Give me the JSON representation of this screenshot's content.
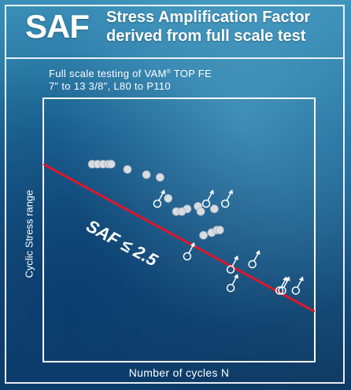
{
  "header": {
    "abbr": "SAF",
    "title_line1": "Stress Amplification Factor",
    "title_line2": "derived from full scale test"
  },
  "subtitle": {
    "line1_pre": "Full scale testing of VAM",
    "line1_reg": "®",
    "line1_post": " TOP FE",
    "line2": "7\"  to 13 3/8\",  L80 to P110"
  },
  "chart_data": {
    "type": "scatter",
    "xlabel": "Number of cycles N",
    "ylabel": "Cyclic Stress range",
    "annotation": "SAF ≤ 2.5",
    "grid": false,
    "legend": "none",
    "colors": {
      "line": "#e0162b",
      "points": "#d8dde4",
      "frame": "#ffffff"
    },
    "xlim": [
      0,
      100
    ],
    "ylim": [
      0,
      100
    ],
    "trend_line": {
      "x": [
        0,
        100
      ],
      "y": [
        75,
        19
      ]
    },
    "failures": [
      {
        "x": 18,
        "y": 75
      },
      {
        "x": 20,
        "y": 75
      },
      {
        "x": 22,
        "y": 75
      },
      {
        "x": 24,
        "y": 75
      },
      {
        "x": 25,
        "y": 75
      },
      {
        "x": 31,
        "y": 73
      },
      {
        "x": 38,
        "y": 71
      },
      {
        "x": 43,
        "y": 70
      },
      {
        "x": 46,
        "y": 62
      },
      {
        "x": 53,
        "y": 58
      },
      {
        "x": 49,
        "y": 57
      },
      {
        "x": 51,
        "y": 57
      },
      {
        "x": 57,
        "y": 59
      },
      {
        "x": 58,
        "y": 57
      },
      {
        "x": 63,
        "y": 58
      },
      {
        "x": 62,
        "y": 49
      },
      {
        "x": 64,
        "y": 50
      },
      {
        "x": 65,
        "y": 50
      },
      {
        "x": 59,
        "y": 48
      }
    ],
    "runouts": [
      {
        "x": 42,
        "y": 60
      },
      {
        "x": 60,
        "y": 60
      },
      {
        "x": 67,
        "y": 60
      },
      {
        "x": 53,
        "y": 40
      },
      {
        "x": 69,
        "y": 35
      },
      {
        "x": 77,
        "y": 37
      },
      {
        "x": 69,
        "y": 28
      },
      {
        "x": 87,
        "y": 27
      },
      {
        "x": 88,
        "y": 27
      },
      {
        "x": 93,
        "y": 27
      }
    ]
  }
}
